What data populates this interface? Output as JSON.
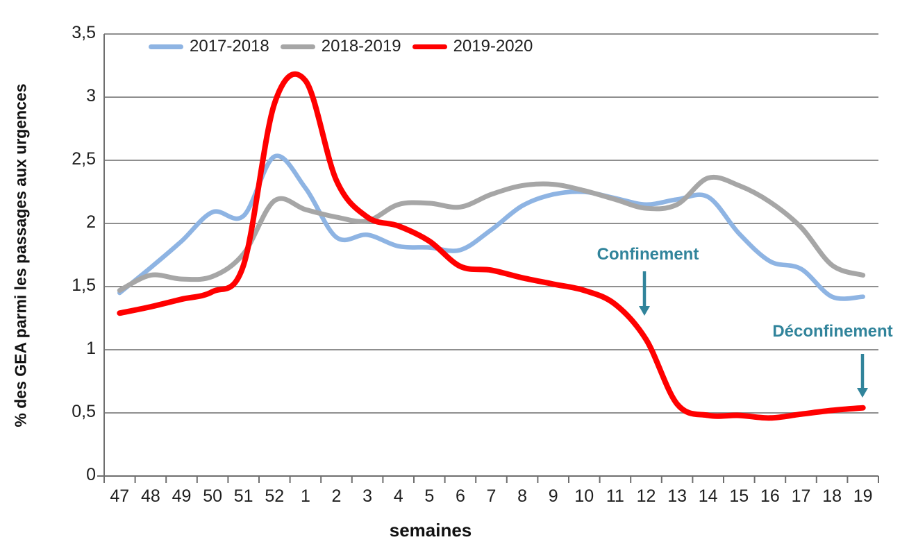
{
  "chart_data": {
    "type": "line",
    "title": "",
    "ylabel": "% des GEA parmi les passages aux urgences",
    "xlabel": "semaines",
    "ylim": [
      0,
      3.5
    ],
    "ytick_step": 0.5,
    "ytick_labels": [
      "0",
      "0,5",
      "1",
      "1,5",
      "2",
      "2,5",
      "3",
      "3,5"
    ],
    "grid": true,
    "legend_position": "top",
    "categories": [
      "47",
      "48",
      "49",
      "50",
      "51",
      "52",
      "1",
      "2",
      "3",
      "4",
      "5",
      "6",
      "7",
      "8",
      "9",
      "10",
      "11",
      "12",
      "13",
      "14",
      "15",
      "16",
      "17",
      "18",
      "19"
    ],
    "series": [
      {
        "name": "2017-2018",
        "color": "#8EB4E3",
        "values": [
          1.45,
          1.65,
          1.86,
          2.09,
          2.06,
          2.53,
          2.28,
          1.89,
          1.91,
          1.82,
          1.81,
          1.79,
          1.95,
          2.14,
          2.23,
          2.25,
          2.2,
          2.15,
          2.19,
          2.21,
          1.92,
          1.7,
          1.64,
          1.42,
          1.42
        ]
      },
      {
        "name": "2018-2019",
        "color": "#A6A6A6",
        "values": [
          1.47,
          1.59,
          1.56,
          1.58,
          1.76,
          2.18,
          2.11,
          2.05,
          2.02,
          2.15,
          2.16,
          2.13,
          2.23,
          2.3,
          2.31,
          2.26,
          2.19,
          2.12,
          2.15,
          2.36,
          2.3,
          2.17,
          1.97,
          1.67,
          1.59
        ]
      },
      {
        "name": "2019-2020",
        "color": "#FF0000",
        "values": [
          1.29,
          1.34,
          1.4,
          1.46,
          1.67,
          2.95,
          3.13,
          2.34,
          2.05,
          1.98,
          1.86,
          1.66,
          1.63,
          1.57,
          1.52,
          1.47,
          1.36,
          1.08,
          0.57,
          0.48,
          0.48,
          0.46,
          0.49,
          0.52,
          0.54
        ]
      }
    ],
    "annotations": [
      {
        "label": "Confinement",
        "target_week": "12",
        "color": "#31849B"
      },
      {
        "label": "Déconfinement",
        "target_week": "19",
        "color": "#31849B"
      }
    ]
  }
}
